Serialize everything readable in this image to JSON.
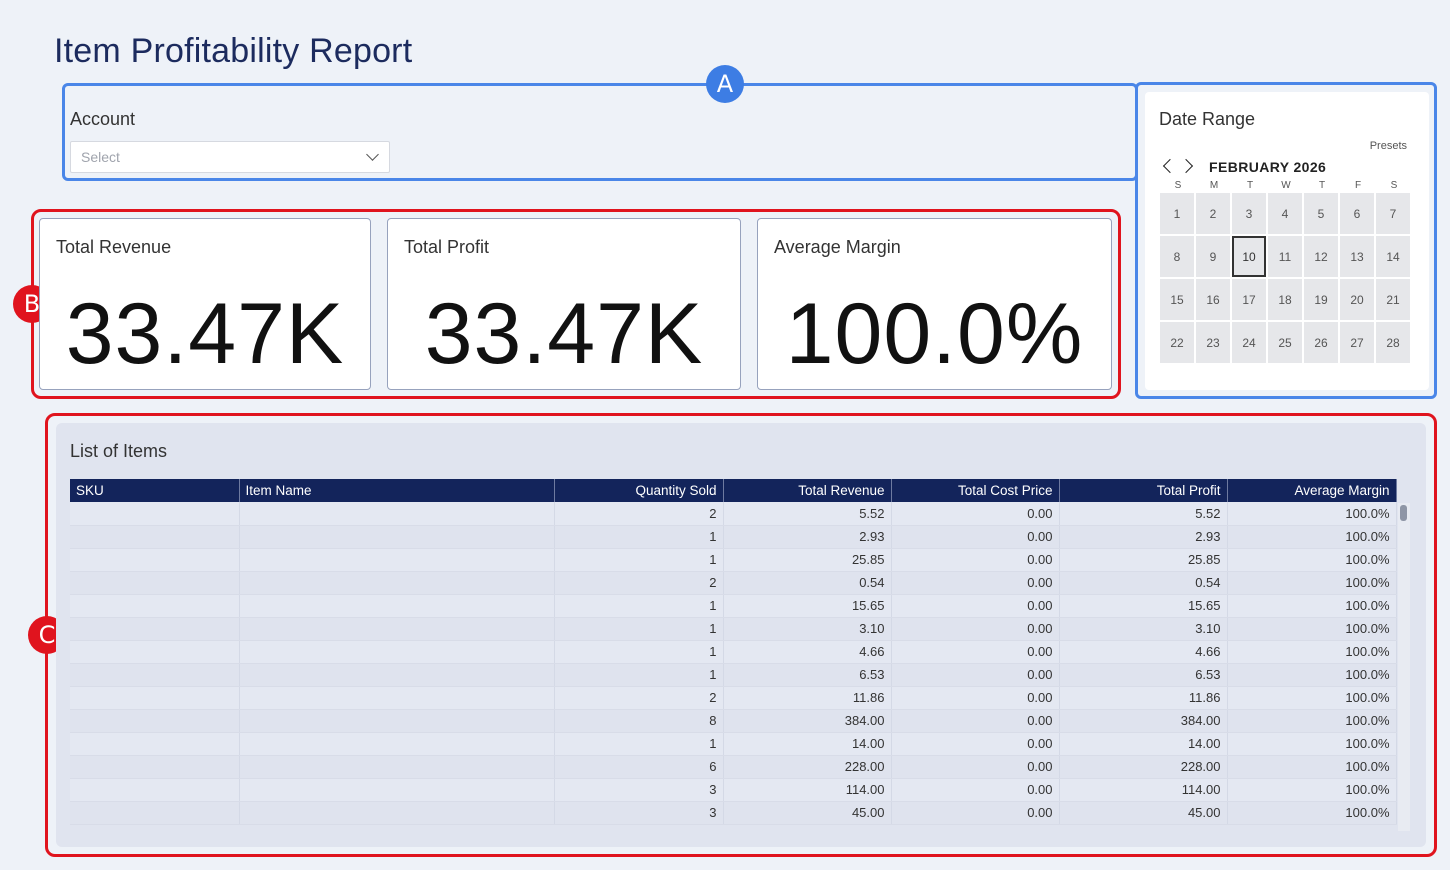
{
  "page": {
    "title": "Item Profitability Report"
  },
  "annotations": {
    "a": "A",
    "b": "B",
    "c": "C"
  },
  "account": {
    "label": "Account",
    "placeholder": "Select"
  },
  "date_range": {
    "title": "Date Range",
    "presets": "Presets",
    "month": "FEBRUARY 2026",
    "weekdays": [
      "S",
      "M",
      "T",
      "W",
      "T",
      "F",
      "S"
    ],
    "days": [
      "1",
      "2",
      "3",
      "4",
      "5",
      "6",
      "7",
      "8",
      "9",
      "10",
      "11",
      "12",
      "13",
      "14",
      "15",
      "16",
      "17",
      "18",
      "19",
      "20",
      "21",
      "22",
      "23",
      "24",
      "25",
      "26",
      "27",
      "28"
    ],
    "selected_day": "10"
  },
  "kpis": [
    {
      "label": "Total Revenue",
      "value": "33.47K"
    },
    {
      "label": "Total Profit",
      "value": "33.47K"
    },
    {
      "label": "Average Margin",
      "value": "100.0%"
    }
  ],
  "table": {
    "title": "List of Items",
    "columns": [
      "SKU",
      "Item Name",
      "Quantity Sold",
      "Total Revenue",
      "Total Cost Price",
      "Total Profit",
      "Average Margin"
    ],
    "rows": [
      {
        "sku": "",
        "name": "",
        "qty": "2",
        "revenue": "5.52",
        "cost": "0.00",
        "profit": "5.52",
        "margin": "100.0%"
      },
      {
        "sku": "",
        "name": "",
        "qty": "1",
        "revenue": "2.93",
        "cost": "0.00",
        "profit": "2.93",
        "margin": "100.0%"
      },
      {
        "sku": "",
        "name": "",
        "qty": "1",
        "revenue": "25.85",
        "cost": "0.00",
        "profit": "25.85",
        "margin": "100.0%"
      },
      {
        "sku": "",
        "name": "",
        "qty": "2",
        "revenue": "0.54",
        "cost": "0.00",
        "profit": "0.54",
        "margin": "100.0%"
      },
      {
        "sku": "",
        "name": "",
        "qty": "1",
        "revenue": "15.65",
        "cost": "0.00",
        "profit": "15.65",
        "margin": "100.0%"
      },
      {
        "sku": "",
        "name": "",
        "qty": "1",
        "revenue": "3.10",
        "cost": "0.00",
        "profit": "3.10",
        "margin": "100.0%"
      },
      {
        "sku": "",
        "name": "",
        "qty": "1",
        "revenue": "4.66",
        "cost": "0.00",
        "profit": "4.66",
        "margin": "100.0%"
      },
      {
        "sku": "",
        "name": "",
        "qty": "1",
        "revenue": "6.53",
        "cost": "0.00",
        "profit": "6.53",
        "margin": "100.0%"
      },
      {
        "sku": "",
        "name": "",
        "qty": "2",
        "revenue": "11.86",
        "cost": "0.00",
        "profit": "11.86",
        "margin": "100.0%"
      },
      {
        "sku": "",
        "name": "",
        "qty": "8",
        "revenue": "384.00",
        "cost": "0.00",
        "profit": "384.00",
        "margin": "100.0%"
      },
      {
        "sku": "",
        "name": "",
        "qty": "1",
        "revenue": "14.00",
        "cost": "0.00",
        "profit": "14.00",
        "margin": "100.0%"
      },
      {
        "sku": "",
        "name": "",
        "qty": "6",
        "revenue": "228.00",
        "cost": "0.00",
        "profit": "228.00",
        "margin": "100.0%"
      },
      {
        "sku": "",
        "name": "",
        "qty": "3",
        "revenue": "114.00",
        "cost": "0.00",
        "profit": "114.00",
        "margin": "100.0%"
      },
      {
        "sku": "",
        "name": "",
        "qty": "3",
        "revenue": "45.00",
        "cost": "0.00",
        "profit": "45.00",
        "margin": "100.0%"
      }
    ]
  },
  "colors": {
    "outline_a": "#4a86e8",
    "outline_red": "#e0141e",
    "header_bg": "#13245b"
  }
}
